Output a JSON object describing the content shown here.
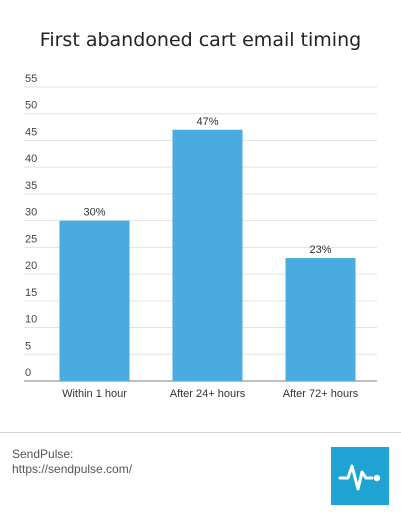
{
  "chart_data": {
    "type": "bar",
    "title": "First abandoned cart email timing",
    "categories": [
      "Within 1 hour",
      "After 24+ hours",
      "After 72+ hours"
    ],
    "values": [
      30,
      47,
      23
    ],
    "value_labels": [
      "30%",
      "47%",
      "23%"
    ],
    "ylim": [
      0,
      55
    ],
    "yticks": [
      0,
      5,
      10,
      15,
      20,
      25,
      30,
      35,
      40,
      45,
      50,
      55
    ],
    "xlabel": "",
    "ylabel": "",
    "grid": true,
    "bar_color": "#4aabe0"
  },
  "source": {
    "line1": "SendPulse:",
    "line2": "https://sendpulse.com/"
  },
  "logo": {
    "icon": "pulse-waveform-icon",
    "color": "#1fa3d2"
  }
}
